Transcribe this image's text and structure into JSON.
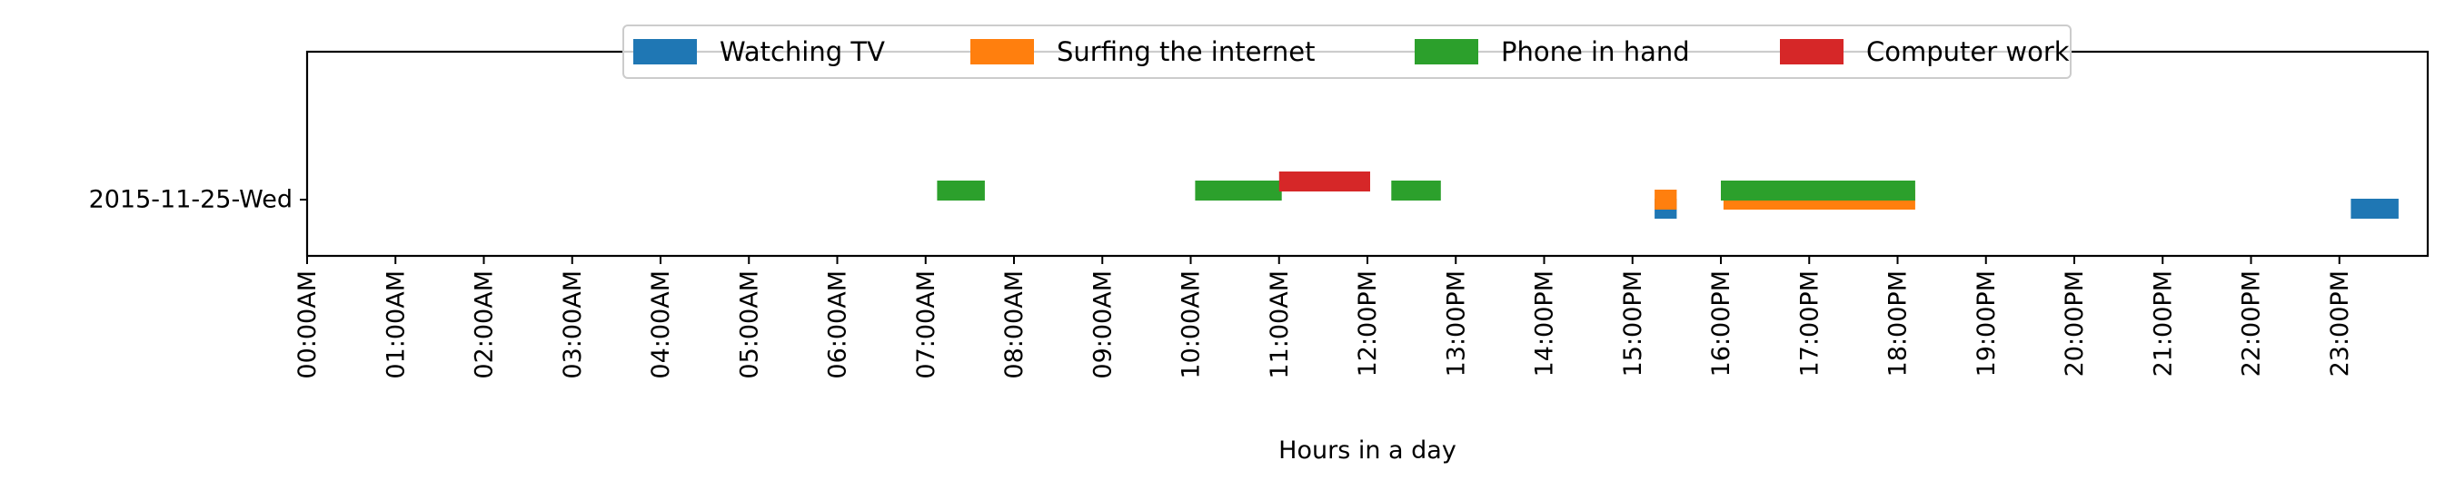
{
  "chart_data": {
    "type": "bar",
    "orientation": "horizontal-timeline",
    "title": "",
    "xlabel": "Hours in a day",
    "ylabel": "",
    "xlim": [
      0,
      24
    ],
    "x_unit": "hours",
    "categories": [
      "2015-11-25-Wed"
    ],
    "x_ticks": [
      0,
      1,
      2,
      3,
      4,
      5,
      6,
      7,
      8,
      9,
      10,
      11,
      12,
      13,
      14,
      15,
      16,
      17,
      18,
      19,
      20,
      21,
      22,
      23
    ],
    "x_tick_labels": [
      "00:00AM",
      "01:00AM",
      "02:00AM",
      "03:00AM",
      "04:00AM",
      "05:00AM",
      "06:00AM",
      "07:00AM",
      "08:00AM",
      "09:00AM",
      "10:00AM",
      "11:00AM",
      "12:00PM",
      "13:00PM",
      "14:00PM",
      "15:00PM",
      "16:00PM",
      "17:00PM",
      "18:00PM",
      "19:00PM",
      "20:00PM",
      "21:00PM",
      "22:00PM",
      "23:00PM"
    ],
    "legend_position": "top-center",
    "grid": false,
    "series": [
      {
        "name": "Watching TV",
        "color": "#1f77b4",
        "lane": 0,
        "intervals": [
          [
            15.25,
            15.5
          ],
          [
            23.13,
            23.67
          ]
        ]
      },
      {
        "name": "Surfing the internet",
        "color": "#ff7f0e",
        "lane": 1,
        "intervals": [
          [
            15.25,
            15.5
          ],
          [
            16.03,
            18.2
          ]
        ]
      },
      {
        "name": "Phone in hand",
        "color": "#2ca02c",
        "lane": 2,
        "intervals": [
          [
            7.13,
            7.67
          ],
          [
            10.05,
            11.03
          ],
          [
            12.27,
            12.83
          ],
          [
            16.0,
            18.2
          ]
        ]
      },
      {
        "name": "Computer work",
        "color": "#d62728",
        "lane": 3,
        "intervals": [
          [
            11.0,
            12.03
          ]
        ]
      }
    ]
  }
}
